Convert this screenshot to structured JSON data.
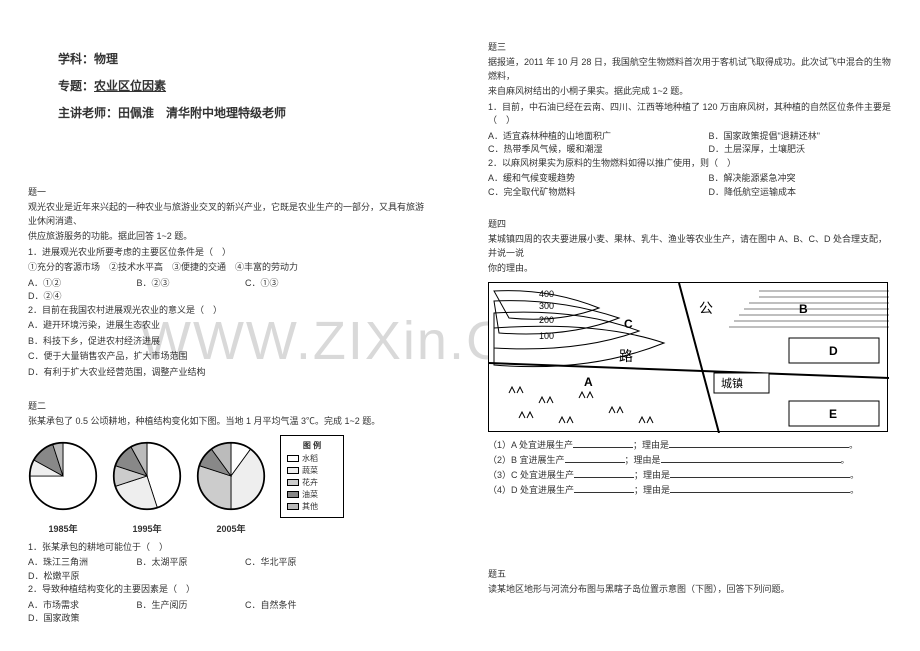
{
  "watermark": "WWW.ZIXin.Com.cn",
  "header": {
    "subject_label": "学科：",
    "subject_value": "物理",
    "topic_label": "专题：",
    "topic_value": "农业区位因素",
    "teacher_label": "主讲老师：",
    "teacher_name": "田佩淮",
    "teacher_title": "清华附中地理特级老师"
  },
  "q1": {
    "head": "题一",
    "intro1": "观光农业是近年来兴起的一种农业与旅游业交叉的新兴产业，它既是农业生产的一部分，又具有旅游业休闲消遣、",
    "intro2": "供应旅游服务的功能。据此回答 1~2 题。",
    "q1text": "1．进展观光农业所要考虑的主要区位条件是（　）",
    "opts_line": "①充分的客源市场　②技术水平高　③便捷的交通　④丰富的劳动力",
    "choices": {
      "a": "A．①②",
      "b": "B．②③",
      "c": "C．①③",
      "d": "D．②④"
    },
    "q2text": "2．目前在我国农村进展观光农业的意义是（　）",
    "c2": {
      "a": "A．避开环境污染，进展生态农业",
      "b": "B．科技下乡，促进农村经济进展",
      "c": "C．便于大量销售农产品，扩大市场范围",
      "d": "D．有利于扩大农业经营范围，调整产业结构"
    }
  },
  "q2": {
    "head": "题二",
    "intro": "张某承包了 0.5 公顷耕地，种植结构变化如下图。当地 1 月平均气温 3℃。完成 1~2 题。",
    "legend_title": "图 例",
    "legend": {
      "rice": "水稻",
      "veg": "蔬菜",
      "flower": "花卉",
      "oil": "油菜",
      "other": "其他"
    },
    "years": {
      "y1": "1985年",
      "y2": "1995年",
      "y3": "2005年"
    },
    "q1text": "1．张某承包的耕地可能位于（　）",
    "c1": {
      "a": "A．珠江三角洲",
      "b": "B．太湖平原",
      "c": "C．华北平原",
      "d": "D．松嫩平原"
    },
    "q2text": "2．导致种植结构变化的主要因素是（　）",
    "c2": {
      "a": "A．市场需求",
      "b": "B．生产阅历",
      "c": "C．自然条件",
      "d": "D．国家政策"
    },
    "pies": {
      "colors": {
        "rice": "#ffffff",
        "veg": "#eeeeee",
        "flower": "#cccccc",
        "oil": "#888888",
        "other": "#bbbbbb"
      },
      "y1985": {
        "rice": 75,
        "veg": 8,
        "flower": 0,
        "oil": 12,
        "other": 5
      },
      "y1995": {
        "rice": 45,
        "veg": 25,
        "flower": 10,
        "oil": 12,
        "other": 8
      },
      "y2005": {
        "rice": 10,
        "veg": 40,
        "flower": 30,
        "oil": 10,
        "other": 10
      }
    }
  },
  "q3": {
    "head": "题三",
    "intro1": "据报道，2011 年 10 月 28 日，我国航空生物燃料首次用于客机试飞取得成功。此次试飞中混合的生物燃料，",
    "intro2": "来自麻风树结出的小桐子果实。据此完成 1~2 题。",
    "q1text": "1．目前，中石油已经在云南、四川、江西等地种植了 120 万亩麻风树，其种植的自然区位条件主要是（　）",
    "c1": {
      "a": "A．适宜森林种植的山地面积广",
      "b": "B．国家政策提倡\"退耕还林\"",
      "c": "C．热带季风气候，暖和潮湿",
      "d": "D．土层深厚，土壤肥沃"
    },
    "q2text": "2．以麻风树果实为原料的生物燃料如得以推广使用，则（　）",
    "c2": {
      "a": "A．缓和气候变暖趋势",
      "b": "B．解决能源紧急冲突",
      "c": "C．完全取代矿物燃料",
      "d": "D．降低航空运输成本"
    }
  },
  "q4": {
    "head": "题四",
    "intro1": "某城镇四周的农夫要进展小麦、果林、乳牛、渔业等农业生产，请在图中 A、B、C、D 处合理支配，并说一说",
    "intro2": "你的理由。",
    "map": {
      "labels": {
        "A": "A",
        "B": "B",
        "C": "C",
        "D": "D",
        "E": "E",
        "town": "城镇",
        "road1": "公",
        "road2": "路"
      },
      "contours": [
        "400",
        "300",
        "200",
        "100"
      ]
    },
    "fills": {
      "l1a": "（1）A 处宜进展生产",
      "l1b": "；理由是",
      "l2a": "（2）B 宜进展生产",
      "l2b": "；理由是",
      "l3a": "（3）C 处宜进展生产",
      "l3b": "；理由是",
      "l4a": "（4）D 处宜进展生产",
      "l4b": "；理由是"
    }
  },
  "q5": {
    "head": "题五",
    "intro": "读某地区地形与河流分布图与黑瞎子岛位置示意图（下图），回答下列问题。"
  }
}
